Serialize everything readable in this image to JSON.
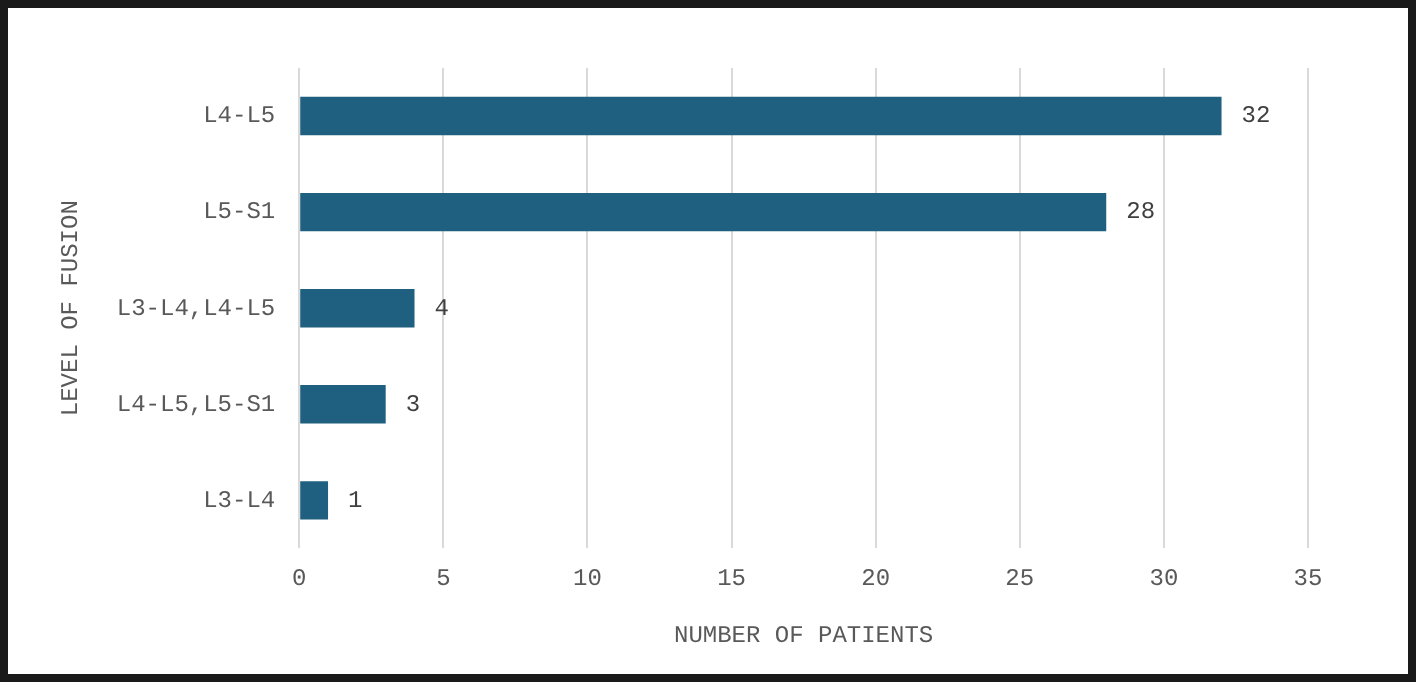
{
  "chart_data": {
    "type": "bar",
    "orientation": "horizontal",
    "xlabel": "NUMBER OF PATIENTS",
    "ylabel": "LEVEL OF FUSION",
    "categories": [
      "L4-L5",
      "L5-S1",
      "L3-L4,L4-L5",
      "L4-L5,L5-S1",
      "L3-L4"
    ],
    "values": [
      32,
      28,
      4,
      3,
      1
    ],
    "color": "#1f5f7f",
    "xlim": [
      0,
      35
    ],
    "xticks": [
      0,
      5,
      10,
      15,
      20,
      25,
      30,
      35
    ],
    "grid": "x",
    "data_labels": true,
    "legend": false
  }
}
